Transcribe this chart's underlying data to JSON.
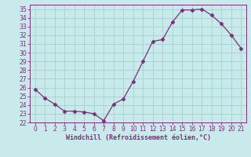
{
  "x": [
    0,
    1,
    2,
    3,
    4,
    5,
    6,
    7,
    8,
    9,
    10,
    11,
    12,
    13,
    14,
    15,
    16,
    17,
    18,
    19,
    20,
    21
  ],
  "y": [
    25.8,
    24.8,
    24.1,
    23.3,
    23.3,
    23.2,
    23.0,
    22.2,
    24.1,
    24.7,
    26.7,
    29.0,
    31.3,
    31.5,
    33.5,
    34.9,
    34.9,
    35.0,
    34.3,
    33.3,
    32.0,
    30.5
  ],
  "line_color": "#7b2f7b",
  "marker": "D",
  "marker_size": 2.5,
  "bg_color": "#c8eaea",
  "grid_color": "#aad4d4",
  "xlabel": "Windchill (Refroidissement éolien,°C)",
  "xlabel_color": "#7b2f7b",
  "xlim": [
    -0.5,
    21.5
  ],
  "ylim": [
    22,
    35.5
  ],
  "yticks": [
    22,
    23,
    24,
    25,
    26,
    27,
    28,
    29,
    30,
    31,
    32,
    33,
    34,
    35
  ],
  "xticks": [
    0,
    1,
    2,
    3,
    4,
    5,
    6,
    7,
    8,
    9,
    10,
    11,
    12,
    13,
    14,
    15,
    16,
    17,
    18,
    19,
    20,
    21
  ],
  "tick_fontsize": 5.5,
  "xlabel_fontsize": 6.0
}
